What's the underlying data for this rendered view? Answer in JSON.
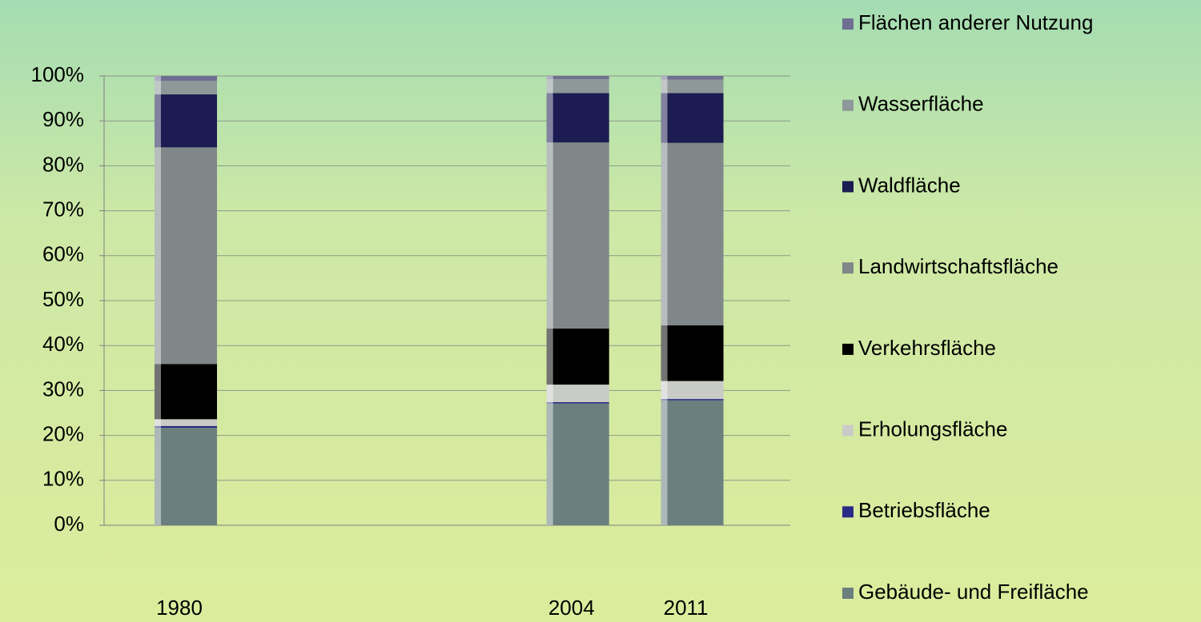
{
  "chart_data": {
    "type": "stacked_bar",
    "x": [
      1980,
      2004,
      2011
    ],
    "xlim": [
      1975,
      2017
    ],
    "ylim": [
      0,
      100
    ],
    "yticks": [
      {
        "value": 0,
        "label": "0%"
      },
      {
        "value": 10,
        "label": "10%"
      },
      {
        "value": 20,
        "label": "20%"
      },
      {
        "value": 30,
        "label": "30%"
      },
      {
        "value": 40,
        "label": "40%"
      },
      {
        "value": 50,
        "label": "50%"
      },
      {
        "value": 60,
        "label": "60%"
      },
      {
        "value": 70,
        "label": "70%"
      },
      {
        "value": 80,
        "label": "80%"
      },
      {
        "value": 90,
        "label": "90%"
      },
      {
        "value": 100,
        "label": "100%"
      }
    ],
    "grid": true,
    "legend": "right",
    "series": [
      {
        "name": "Gebäude- und Freifläche",
        "color": "#6b7f7f",
        "values": [
          21.7,
          27.1,
          27.8
        ]
      },
      {
        "name": "Betriebsfläche",
        "color": "#2b2b86",
        "values": [
          0.4,
          0.3,
          0.3
        ]
      },
      {
        "name": "Erholungsfläche",
        "color": "#c9cbc6",
        "values": [
          1.5,
          3.9,
          4.0
        ]
      },
      {
        "name": "Verkehrsfläche",
        "color": "#000000",
        "values": [
          12.3,
          12.5,
          12.4
        ]
      },
      {
        "name": "Landwirtschaftsfläche",
        "color": "#7f8788",
        "values": [
          48.2,
          41.4,
          40.6
        ]
      },
      {
        "name": "Waldfläche",
        "color": "#1c1c52",
        "values": [
          11.8,
          11.0,
          11.1
        ]
      },
      {
        "name": "Wasserfläche",
        "color": "#8f9898",
        "values": [
          3.0,
          3.1,
          3.0
        ]
      },
      {
        "name": "Flächen anderer Nutzung",
        "color": "#6f6f92",
        "values": [
          1.1,
          0.7,
          0.8
        ]
      }
    ]
  }
}
